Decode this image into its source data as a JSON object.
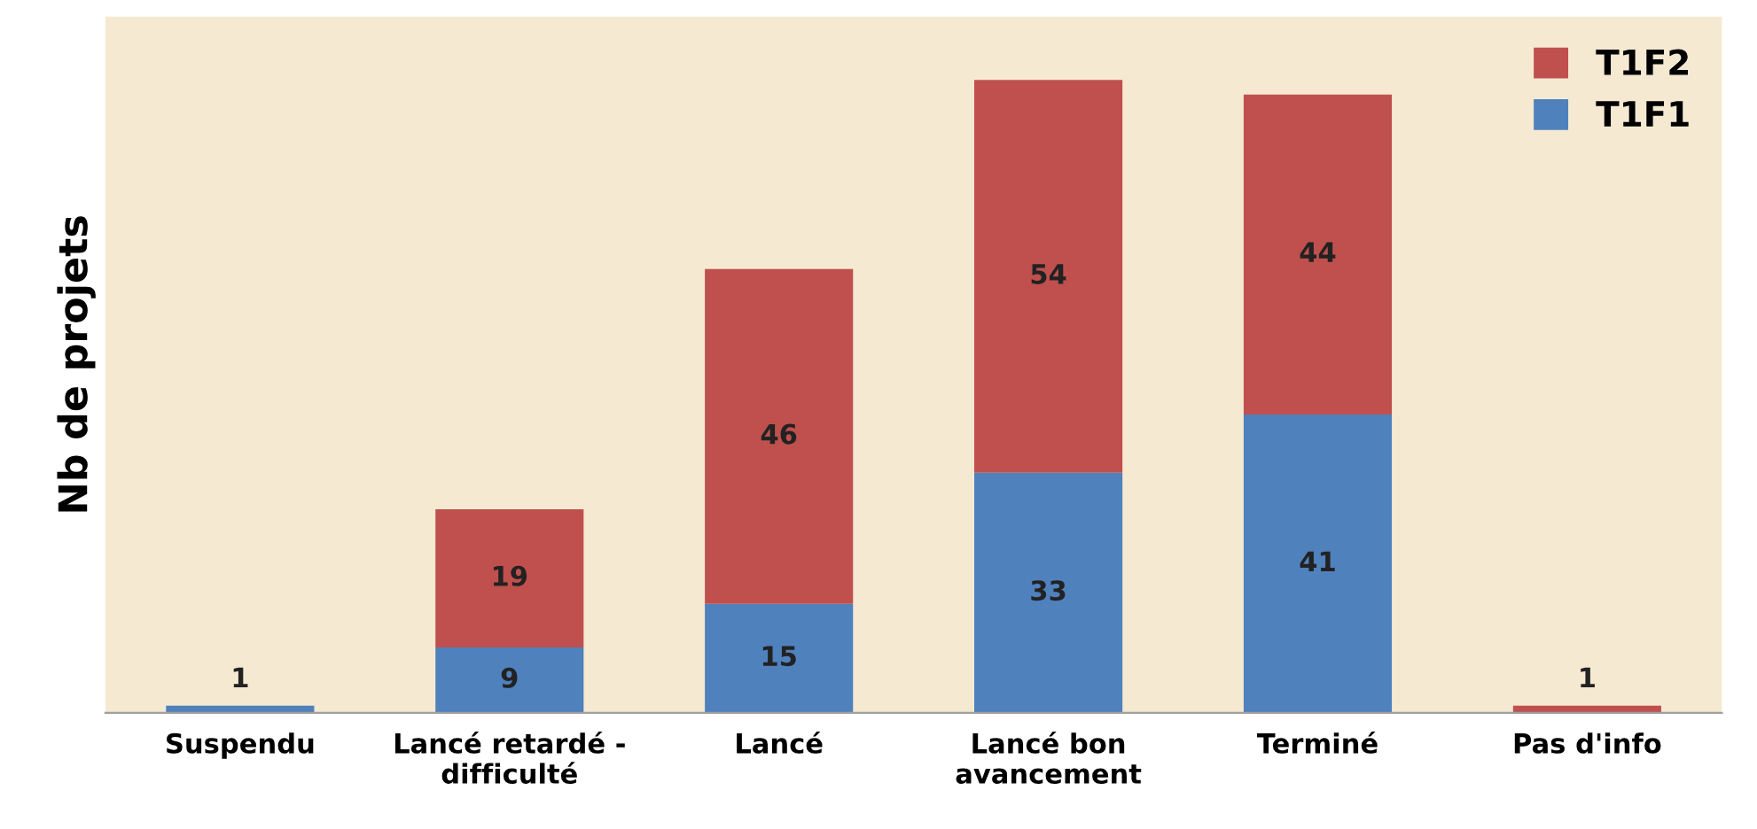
{
  "chart_data": {
    "type": "bar",
    "stacked": true,
    "ylabel": "Nb de projets",
    "categories": [
      "Suspendu",
      "Lancé retardé -\ndifficulté",
      "Lancé",
      "Lancé bon\navancement",
      "Terminé",
      "Pas d'info"
    ],
    "series": [
      {
        "name": "T1F1",
        "color": "#4f81bd",
        "values": [
          1,
          9,
          15,
          33,
          41,
          null
        ]
      },
      {
        "name": "T1F2",
        "color": "#c0504d",
        "values": [
          null,
          19,
          46,
          54,
          44,
          1
        ]
      }
    ],
    "data_labels": true,
    "legend": "top right",
    "grid": false,
    "tick_labels": "x"
  }
}
